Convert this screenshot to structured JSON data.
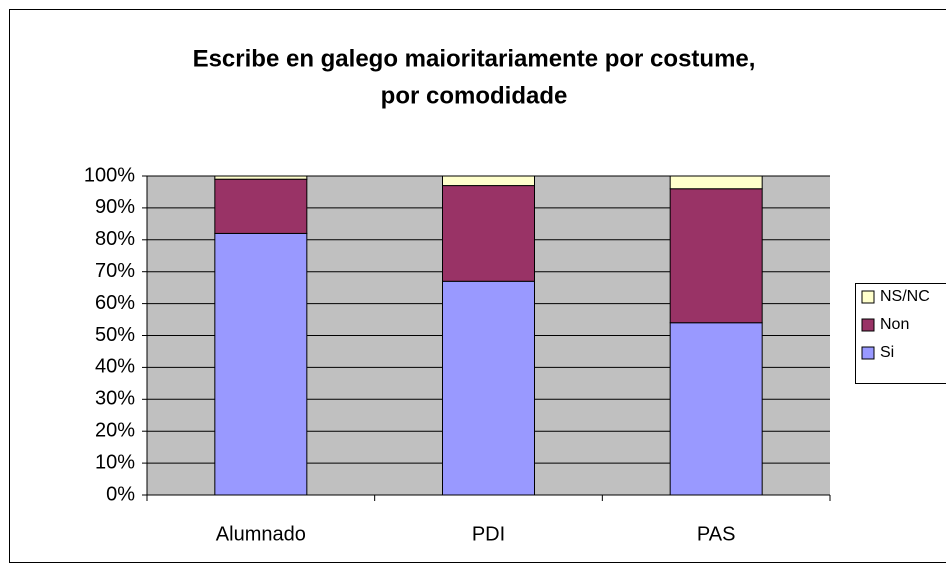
{
  "chart_data": {
    "type": "stacked_bar",
    "title": [
      "Escribe en galego maioritariamente por costume,",
      "por comodidade"
    ],
    "categories": [
      "Alumnado",
      "PDI",
      "PAS"
    ],
    "series": [
      {
        "name": "Si",
        "color": "#9999ff",
        "values": [
          82,
          67,
          54
        ]
      },
      {
        "name": "Non",
        "color": "#993366",
        "values": [
          17,
          30,
          42
        ]
      },
      {
        "name": "NS/NC",
        "color": "#ffffcc",
        "values": [
          1,
          3,
          4
        ]
      }
    ],
    "ylim": [
      0,
      100
    ],
    "yticks": [
      {
        "value": 0,
        "label": "0%"
      },
      {
        "value": 10,
        "label": "10%"
      },
      {
        "value": 20,
        "label": "20%"
      },
      {
        "value": 30,
        "label": "30%"
      },
      {
        "value": 40,
        "label": "40%"
      },
      {
        "value": 50,
        "label": "50%"
      },
      {
        "value": 60,
        "label": "60%"
      },
      {
        "value": 70,
        "label": "70%"
      },
      {
        "value": 80,
        "label": "80%"
      },
      {
        "value": 90,
        "label": "90%"
      },
      {
        "value": 100,
        "label": "100%"
      }
    ],
    "grid": true,
    "legend": "right"
  }
}
